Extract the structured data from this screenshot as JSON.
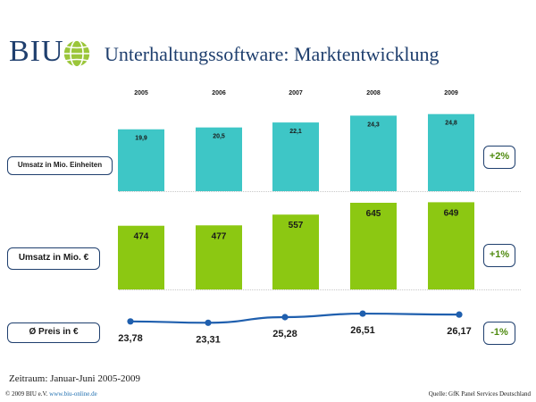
{
  "header": {
    "logo_text": "BIU",
    "title": "Unterhaltungssoftware: Marktentwicklung"
  },
  "rows": {
    "units_label": "Umsatz in Mio. Einheiten",
    "units_change": "+2%",
    "revenue_label": "Umsatz in Mio. €",
    "revenue_change": "+1%",
    "price_label": "Ø Preis in €",
    "price_change": "-1%"
  },
  "footer": {
    "period": "Zeitraum: Januar-Juni 2005-2009",
    "copyright": "© 2009 BIU e.V.",
    "website": "www.biu-online.de",
    "source": "Quelle: GfK Panel Services Deutschland"
  },
  "colors": {
    "navy": "#1f3f6e",
    "teal": "#3ec6c6",
    "green": "#8cc812",
    "price_line": "#1f5fae",
    "positive": "#4f8a10"
  },
  "chart_data": [
    {
      "type": "bar",
      "title": "Umsatz in Mio. Einheiten",
      "categories": [
        "2005",
        "2006",
        "2007",
        "2008",
        "2009"
      ],
      "values": [
        19.9,
        20.5,
        22.1,
        24.3,
        24.8
      ],
      "value_labels": [
        "19,9",
        "20,5",
        "22,1",
        "24,3",
        "24,8"
      ],
      "change": "+2%"
    },
    {
      "type": "bar",
      "title": "Umsatz in Mio. €",
      "categories": [
        "2005",
        "2006",
        "2007",
        "2008",
        "2009"
      ],
      "values": [
        474,
        477,
        557,
        645,
        649
      ],
      "value_labels": [
        "474",
        "477",
        "557",
        "645",
        "649"
      ],
      "change": "+1%"
    },
    {
      "type": "line",
      "title": "Ø Preis in €",
      "categories": [
        "2005",
        "2006",
        "2007",
        "2008",
        "2009"
      ],
      "values": [
        23.78,
        23.31,
        25.28,
        26.51,
        26.17
      ],
      "value_labels": [
        "23,78",
        "23,31",
        "25,28",
        "26,51",
        "26,17"
      ],
      "change": "-1%"
    }
  ]
}
